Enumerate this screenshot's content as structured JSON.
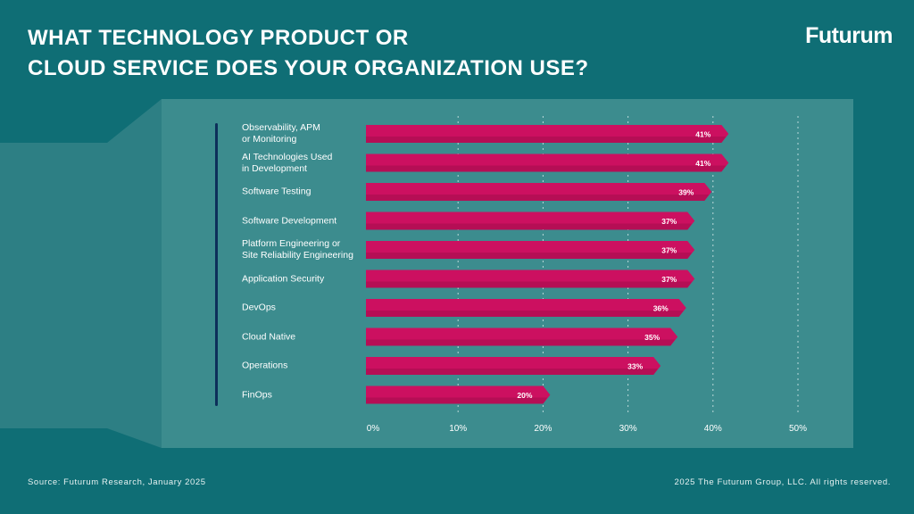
{
  "header": {
    "title_line1": "WHAT TECHNOLOGY PRODUCT OR",
    "title_line2": "CLOUD SERVICE DOES YOUR ORGANIZATION USE?",
    "logo": "Futurum"
  },
  "footer": {
    "source": "Source: Futurum Research, January 2025",
    "copyright": "2025 The Futurum Group, LLC. All rights reserved."
  },
  "colors": {
    "background": "#0f6e75",
    "panel": "#3c8c8e",
    "bar": "#cc1060",
    "bar_dark": "#a30d4d",
    "rule": "#0d2f5a"
  },
  "chart_data": {
    "type": "bar",
    "orientation": "horizontal",
    "title": "WHAT TECHNOLOGY PRODUCT OR CLOUD SERVICE DOES YOUR ORGANIZATION USE?",
    "categories": [
      [
        "Observability, APM",
        "or Monitoring"
      ],
      [
        "AI Technologies Used",
        "in Development"
      ],
      [
        "Software Testing"
      ],
      [
        "Software Development"
      ],
      [
        "Platform Engineering or",
        "Site Reliability Engineering"
      ],
      [
        "Application Security"
      ],
      [
        "DevOps"
      ],
      [
        "Cloud Native"
      ],
      [
        "Operations"
      ],
      [
        "FinOps"
      ]
    ],
    "values": [
      41,
      41,
      39,
      37,
      37,
      37,
      36,
      35,
      33,
      20
    ],
    "value_labels": [
      "41%",
      "41%",
      "39%",
      "37%",
      "37%",
      "37%",
      "36%",
      "35%",
      "33%",
      "20%"
    ],
    "xlim": [
      0,
      50
    ],
    "xticks": [
      0,
      10,
      20,
      30,
      40,
      50
    ],
    "xtick_labels": [
      "0%",
      "10%",
      "20%",
      "30%",
      "40%",
      "50%"
    ],
    "grid": "vertical dotted"
  }
}
